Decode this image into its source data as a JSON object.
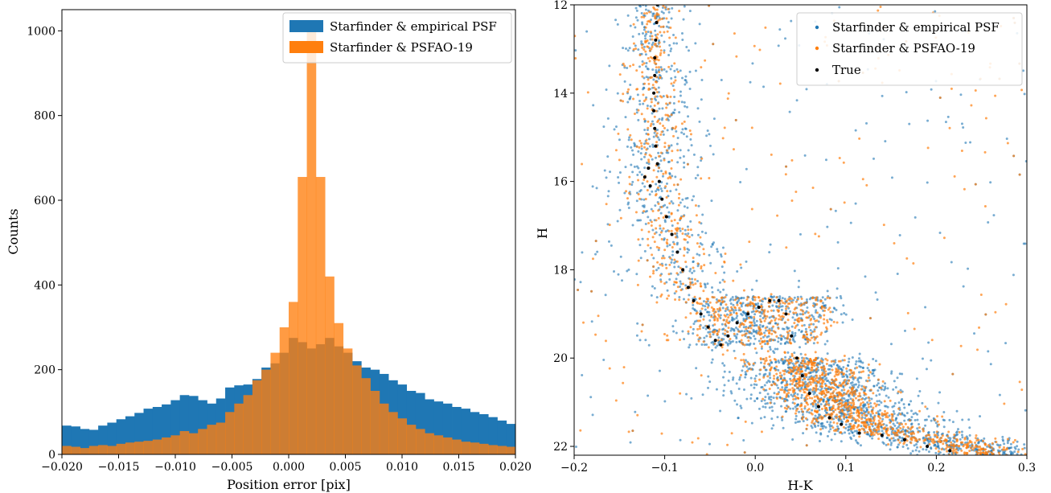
{
  "colors": {
    "blue": "#1f77b4",
    "orange": "#ff7f0e",
    "black": "#000000",
    "legend_border": "#cccccc"
  },
  "chart_data": [
    {
      "type": "histogram",
      "xlabel": "Position error [pix]",
      "ylabel": "Counts",
      "xlim": [
        -0.02,
        0.02
      ],
      "ylim": [
        0,
        1050
      ],
      "xticks": [
        -0.02,
        -0.015,
        -0.01,
        -0.005,
        0.0,
        0.005,
        0.01,
        0.015,
        0.02
      ],
      "xtick_labels": [
        "−0.020",
        "−0.015",
        "−0.010",
        "−0.005",
        "0.000",
        "0.005",
        "0.010",
        "0.015",
        "0.020"
      ],
      "yticks": [
        0,
        200,
        400,
        600,
        800,
        1000
      ],
      "ytick_labels": [
        "0",
        "200",
        "400",
        "600",
        "800",
        "1000"
      ],
      "bin_start": -0.02,
      "bin_width": 0.0008,
      "legend_position": "top-right",
      "series": [
        {
          "name": "Starfinder & empirical PSF",
          "color": "#1f77b4",
          "values": [
            68,
            66,
            60,
            58,
            68,
            75,
            83,
            90,
            98,
            108,
            112,
            118,
            128,
            140,
            138,
            128,
            120,
            132,
            158,
            163,
            165,
            178,
            205,
            215,
            240,
            275,
            265,
            250,
            260,
            275,
            255,
            240,
            220,
            205,
            200,
            190,
            175,
            165,
            150,
            145,
            130,
            125,
            120,
            112,
            108,
            100,
            95,
            88,
            80,
            72
          ]
        },
        {
          "name": "Starfinder & PSFAO-19",
          "color": "#ff7f0e",
          "values": [
            20,
            18,
            15,
            20,
            22,
            20,
            25,
            28,
            30,
            32,
            35,
            40,
            45,
            55,
            50,
            60,
            70,
            75,
            100,
            120,
            140,
            175,
            200,
            240,
            300,
            360,
            655,
            1010,
            655,
            420,
            310,
            250,
            210,
            180,
            150,
            120,
            100,
            85,
            70,
            60,
            50,
            45,
            40,
            35,
            30,
            28,
            25,
            22,
            20,
            18
          ]
        }
      ]
    },
    {
      "type": "scatter",
      "xlabel": "H-K",
      "ylabel": "H",
      "xlim": [
        -0.2,
        0.3
      ],
      "ylim": [
        22.2,
        12.0
      ],
      "y_inverted": true,
      "xticks": [
        -0.2,
        -0.1,
        0.0,
        0.1,
        0.2,
        0.3
      ],
      "xtick_labels": [
        "−0.2",
        "−0.1",
        "0.0",
        "0.1",
        "0.2",
        "0.3"
      ],
      "yticks": [
        12,
        14,
        16,
        18,
        20,
        22
      ],
      "ytick_labels": [
        "12",
        "14",
        "16",
        "18",
        "20",
        "22"
      ],
      "legend_position": "top-right",
      "series": [
        {
          "name": "Starfinder & empirical PSF",
          "color": "#1f77b4"
        },
        {
          "name": "Starfinder & PSFAO-19",
          "color": "#ff7f0e"
        },
        {
          "name": "True",
          "color": "#000000",
          "points": [
            [
              -0.108,
              12.0
            ],
            [
              -0.109,
              12.4
            ],
            [
              -0.11,
              12.8
            ],
            [
              -0.111,
              13.2
            ],
            [
              -0.111,
              13.6
            ],
            [
              -0.112,
              14.0
            ],
            [
              -0.112,
              14.4
            ],
            [
              -0.111,
              14.8
            ],
            [
              -0.11,
              15.2
            ],
            [
              -0.108,
              15.6
            ],
            [
              -0.106,
              16.0
            ],
            [
              -0.103,
              16.4
            ],
            [
              -0.098,
              16.8
            ],
            [
              -0.092,
              17.2
            ],
            [
              -0.086,
              17.6
            ],
            [
              -0.08,
              18.0
            ],
            [
              -0.074,
              18.4
            ],
            [
              -0.068,
              18.7
            ],
            [
              -0.06,
              19.0
            ],
            [
              -0.052,
              19.3
            ],
            [
              -0.044,
              19.6
            ],
            [
              -0.038,
              19.7
            ],
            [
              -0.03,
              19.5
            ],
            [
              -0.02,
              19.2
            ],
            [
              -0.008,
              19.0
            ],
            [
              0.004,
              18.85
            ],
            [
              0.016,
              18.7
            ],
            [
              0.026,
              18.7
            ],
            [
              0.034,
              19.0
            ],
            [
              0.04,
              19.5
            ],
            [
              0.046,
              20.0
            ],
            [
              0.052,
              20.4
            ],
            [
              0.06,
              20.8
            ],
            [
              0.07,
              21.1
            ],
            [
              0.082,
              21.35
            ],
            [
              0.095,
              21.5
            ],
            [
              0.115,
              21.7
            ],
            [
              0.14,
              21.75
            ],
            [
              0.165,
              21.85
            ],
            [
              0.19,
              22.0
            ],
            [
              0.215,
              22.1
            ],
            [
              -0.118,
              15.7
            ],
            [
              -0.122,
              15.9
            ],
            [
              -0.116,
              16.1
            ]
          ]
        }
      ]
    }
  ]
}
